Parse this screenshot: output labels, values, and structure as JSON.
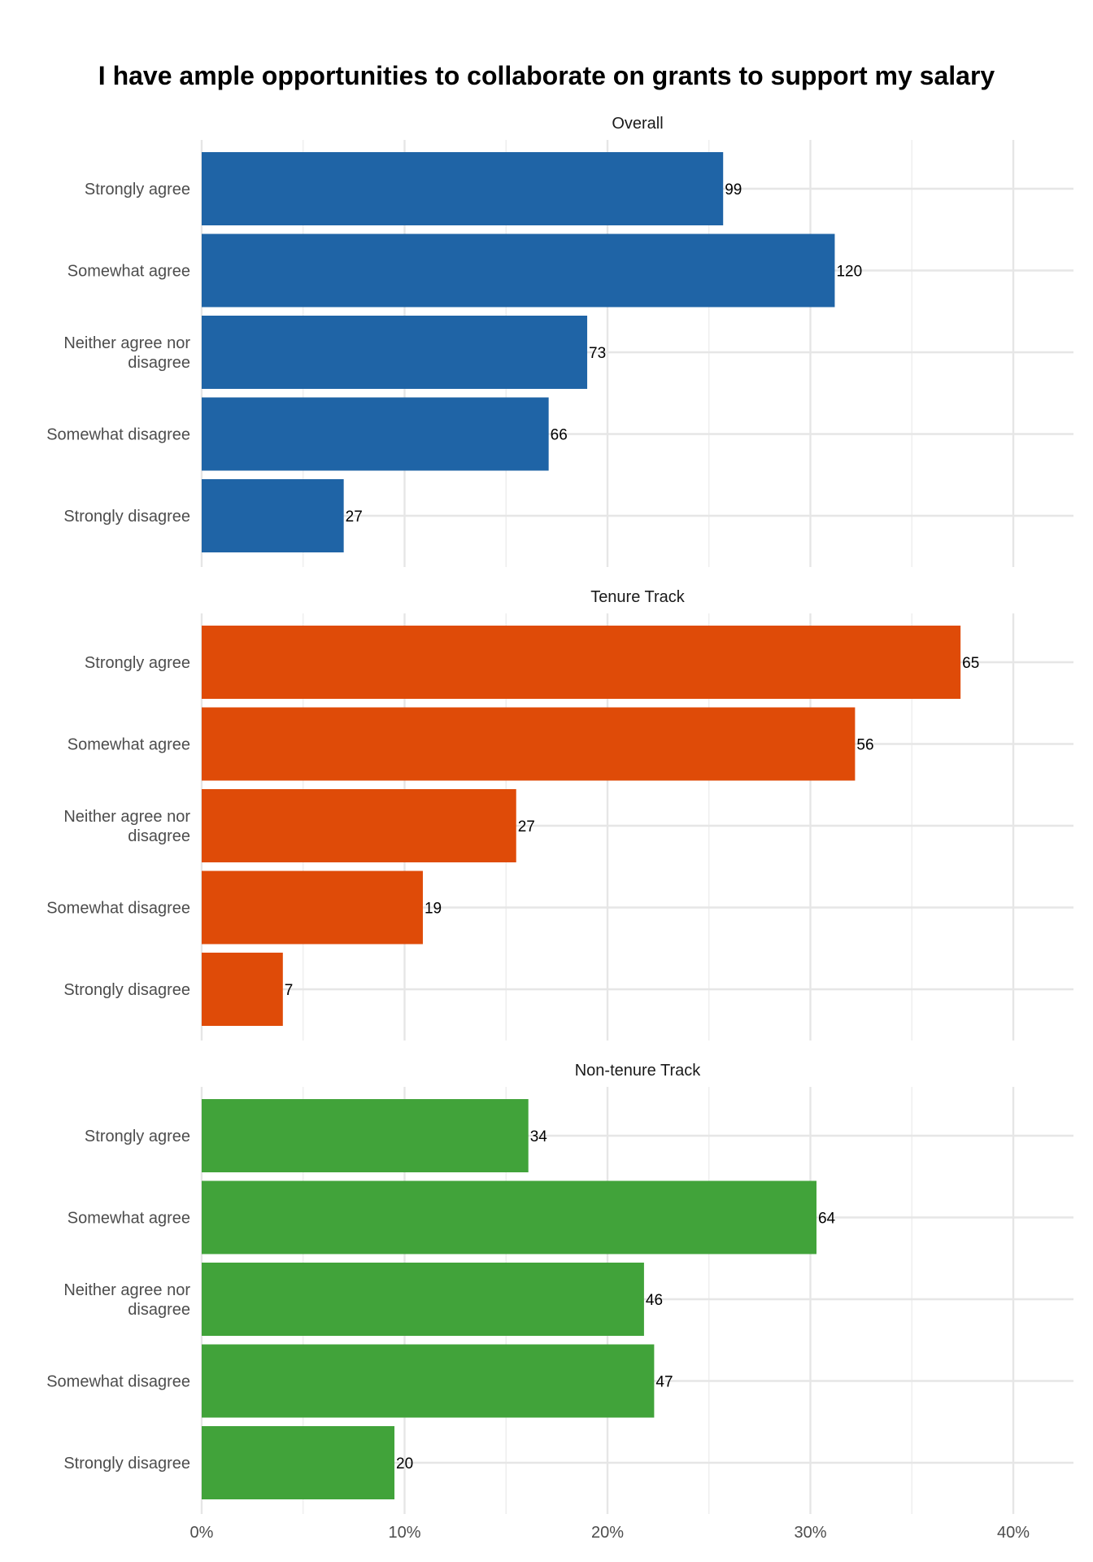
{
  "chart_data": {
    "type": "bar",
    "orientation": "horizontal",
    "title": "I have ample opportunities to collaborate on grants to support my salary",
    "xlabel": "",
    "ylabel": "",
    "x_ticks": [
      "0%",
      "10%",
      "20%",
      "30%",
      "40%"
    ],
    "xlim": [
      0,
      43
    ],
    "grid": true,
    "categories": [
      [
        "Strongly agree"
      ],
      [
        "Somewhat agree"
      ],
      [
        "Neither agree nor",
        "disagree"
      ],
      [
        "Somewhat disagree"
      ],
      [
        "Strongly disagree"
      ]
    ],
    "panels": [
      {
        "name": "Overall",
        "color": "#1f64a6",
        "percent": [
          25.7,
          31.2,
          19.0,
          17.1,
          7.0
        ],
        "labels": [
          "99",
          "120",
          "73",
          "66",
          "27"
        ]
      },
      {
        "name": "Tenure Track",
        "color": "#df4b08",
        "percent": [
          37.4,
          32.2,
          15.5,
          10.9,
          4.0
        ],
        "labels": [
          "65",
          "56",
          "27",
          "19",
          "7"
        ]
      },
      {
        "name": "Non-tenure Track",
        "color": "#41a33a",
        "percent": [
          16.1,
          30.3,
          21.8,
          22.3,
          9.5
        ],
        "labels": [
          "34",
          "64",
          "46",
          "47",
          "20"
        ]
      }
    ]
  }
}
